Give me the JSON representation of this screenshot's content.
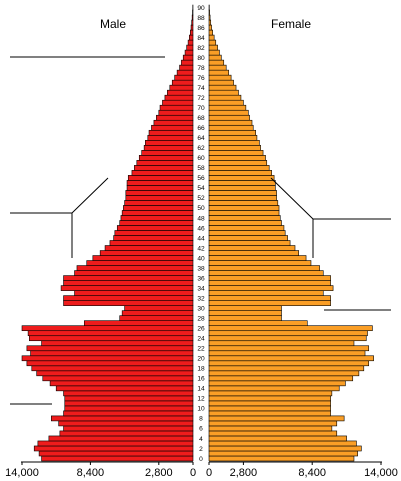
{
  "chart_data": {
    "type": "bar",
    "orientation": "horizontal",
    "subtype": "population-pyramid",
    "ages": [
      0,
      1,
      2,
      3,
      4,
      5,
      6,
      7,
      8,
      9,
      10,
      11,
      12,
      13,
      14,
      15,
      16,
      17,
      18,
      19,
      20,
      21,
      22,
      23,
      24,
      25,
      26,
      27,
      28,
      29,
      30,
      31,
      32,
      33,
      34,
      35,
      36,
      37,
      38,
      39,
      40,
      41,
      42,
      43,
      44,
      45,
      46,
      47,
      48,
      49,
      50,
      51,
      52,
      53,
      54,
      55,
      56,
      57,
      58,
      59,
      60,
      61,
      62,
      63,
      64,
      65,
      66,
      67,
      68,
      69,
      70,
      71,
      72,
      73,
      74,
      75,
      76,
      77,
      78,
      79,
      80,
      81,
      82,
      83,
      84,
      85,
      86,
      87,
      88,
      89,
      90
    ],
    "age_tick_labels": [
      "0",
      "2",
      "4",
      "6",
      "8",
      "10",
      "12",
      "14",
      "16",
      "18",
      "20",
      "22",
      "24",
      "26",
      "28",
      "30",
      "32",
      "34",
      "36",
      "38",
      "40",
      "42",
      "44",
      "46",
      "48",
      "50",
      "52",
      "54",
      "56",
      "58",
      "60",
      "62",
      "64",
      "66",
      "68",
      "70",
      "72",
      "74",
      "76",
      "78",
      "80",
      "82",
      "84",
      "86",
      "88",
      "90"
    ],
    "series": [
      {
        "name": "Male",
        "values": [
          12400,
          12600,
          13000,
          12700,
          11800,
          10900,
          10600,
          11000,
          11600,
          10600,
          10500,
          10500,
          10500,
          10600,
          11200,
          11700,
          12300,
          12800,
          13200,
          13600,
          14000,
          13300,
          13600,
          12400,
          13400,
          13500,
          14000,
          8900,
          6000,
          5800,
          5600,
          10600,
          10600,
          9700,
          10800,
          10600,
          10600,
          9700,
          9500,
          8700,
          8200,
          7600,
          7200,
          6800,
          6500,
          6400,
          6200,
          6000,
          5900,
          5800,
          5700,
          5600,
          5500,
          5500,
          5400,
          5400,
          5300,
          5000,
          4800,
          4600,
          4400,
          4200,
          4000,
          3900,
          3700,
          3600,
          3400,
          3200,
          3000,
          2800,
          2700,
          2500,
          2300,
          2100,
          1900,
          1700,
          1500,
          1300,
          1100,
          950,
          800,
          650,
          520,
          400,
          300,
          220,
          160,
          110,
          70,
          40,
          20
        ],
        "color": "#ee1c1c"
      },
      {
        "name": "Female",
        "values": [
          11800,
          12100,
          12400,
          12000,
          11200,
          10400,
          10000,
          10400,
          11000,
          9900,
          9900,
          9900,
          9900,
          10000,
          10600,
          11100,
          11700,
          12200,
          12600,
          13000,
          13400,
          12700,
          13000,
          11800,
          12800,
          12900,
          13300,
          8000,
          5900,
          5900,
          5900,
          9900,
          9900,
          9300,
          10100,
          9900,
          9900,
          9300,
          9000,
          8300,
          7900,
          7300,
          7000,
          6600,
          6400,
          6200,
          6100,
          5900,
          5800,
          5700,
          5700,
          5600,
          5500,
          5500,
          5400,
          5400,
          5300,
          5100,
          4900,
          4700,
          4600,
          4400,
          4200,
          4100,
          3900,
          3800,
          3600,
          3500,
          3300,
          3200,
          3000,
          2800,
          2600,
          2400,
          2200,
          2000,
          1800,
          1600,
          1400,
          1200,
          1000,
          850,
          700,
          550,
          420,
          300,
          210,
          140,
          90,
          50,
          25
        ],
        "color": "#fa9e26"
      }
    ],
    "x_tick_labels_left": [
      "14,000",
      "8,400",
      "2,800",
      "0"
    ],
    "x_tick_labels_right": [
      "0",
      "2,800",
      "8,400",
      "14,000"
    ],
    "x_ticks": [
      14000,
      8400,
      2800,
      0
    ],
    "xlim": [
      0,
      14000
    ],
    "grid": false,
    "legend": "top"
  }
}
